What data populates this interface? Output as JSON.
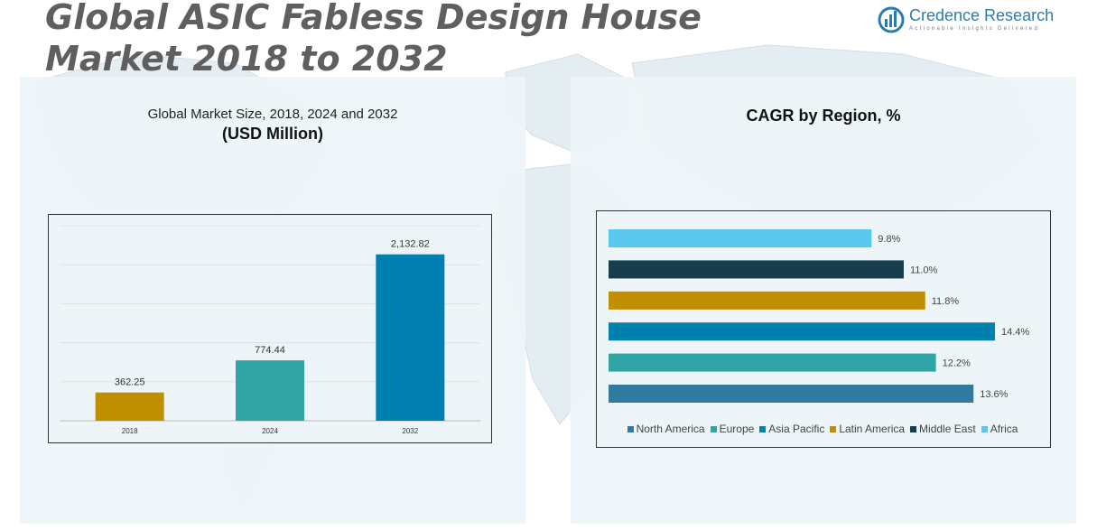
{
  "header": {
    "title": "Global ASIC Fabless Design House Market 2018 to 2032",
    "logo_name": "Credence Research",
    "logo_tagline": "Actionable Insights Delivered"
  },
  "left_panel": {
    "title": "Global Market Size, 2018, 2024 and 2032",
    "subtitle": "(USD Million)"
  },
  "right_panel": {
    "title": "CAGR by Region, %"
  },
  "colors": {
    "title_gray": "#5f5f5f",
    "panel_bg": "#eef5f8",
    "brand_blue": "#2a7db0"
  },
  "chart_data": [
    {
      "type": "bar",
      "categories": [
        "2018",
        "2024",
        "2032"
      ],
      "values": [
        362.25,
        774.44,
        2132.82
      ],
      "value_labels": [
        "362.25",
        "774.44",
        "2,132.82"
      ],
      "colors": [
        "#bf8f00",
        "#31a5a5",
        "#0080b0"
      ],
      "ylim": [
        0,
        2500
      ],
      "grid": true
    },
    {
      "type": "bar",
      "orientation": "horizontal",
      "categories": [
        "Africa",
        "Middle East",
        "Latin America",
        "Asia Pacific",
        "Europe",
        "North America"
      ],
      "values": [
        9.8,
        11.0,
        11.8,
        14.4,
        12.2,
        13.6
      ],
      "value_labels": [
        "9.8%",
        "11.0%",
        "11.8%",
        "14.4%",
        "12.2%",
        "13.6%"
      ],
      "colors": [
        "#5bc8f0",
        "#173d4e",
        "#bf8f00",
        "#0080b0",
        "#31a5a5",
        "#2f7a9e"
      ],
      "legend": [
        "North America",
        "Europe",
        "Asia Pacific",
        "Latin America",
        "Middle East",
        "Africa"
      ],
      "legend_colors": [
        "#2f7a9e",
        "#31a5a5",
        "#0080b0",
        "#bf8f00",
        "#173d4e",
        "#5bc8f0"
      ],
      "legend_position": "bottom",
      "xlim": [
        0,
        14.4
      ]
    }
  ]
}
